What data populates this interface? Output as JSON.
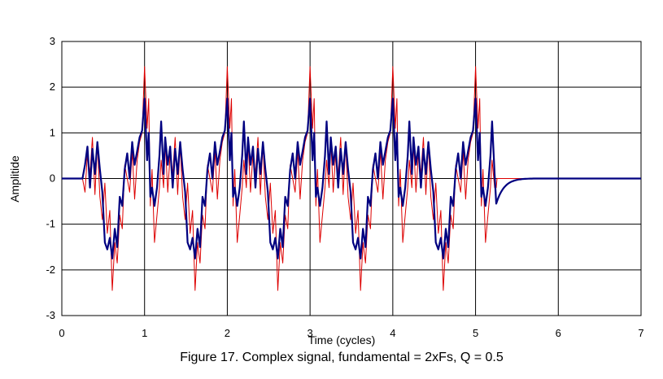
{
  "chart_data": {
    "type": "line",
    "title": "",
    "caption": "Figure 17. Complex signal, fundamental = 2xFs, Q = 0.5",
    "xlabel": "Time (cycles)",
    "ylabel": "Amplitide",
    "xlim": [
      0,
      7
    ],
    "ylim": [
      -3,
      3
    ],
    "x_ticks": [
      0,
      1,
      2,
      3,
      4,
      5,
      6,
      7
    ],
    "y_ticks": [
      -3,
      -2,
      -1,
      0,
      1,
      2,
      3
    ],
    "grid": true,
    "legend": "none",
    "series": [
      {
        "color": "#dd0000",
        "description": "input signal (thin)",
        "period": 1,
        "active_range": [
          0.25,
          5.25
        ],
        "cycle": {
          "x": [
            0.0,
            0.03,
            0.05,
            0.07,
            0.09,
            0.12,
            0.15,
            0.18,
            0.2,
            0.23,
            0.25,
            0.28,
            0.31,
            0.34,
            0.37,
            0.4,
            0.43,
            0.46,
            0.49,
            0.52,
            0.55,
            0.58,
            0.61,
            0.64,
            0.67,
            0.7,
            0.73,
            0.76,
            0.79,
            0.82,
            0.85,
            0.88,
            0.91,
            0.94,
            0.97
          ],
          "y": [
            2.45,
            1.1,
            1.75,
            -0.6,
            0.2,
            -1.4,
            -0.8,
            -0.2,
            0.4,
            -0.2,
            0.85,
            -0.3,
            0.55,
            0.1,
            0.9,
            -0.35,
            0.75,
            -0.4,
            -0.9,
            -0.1,
            -1.2,
            -0.7,
            -2.45,
            -1.4,
            -1.85,
            -0.8,
            -1.1,
            0.3,
            0.0,
            -0.3,
            0.6,
            -0.45,
            0.4,
            0.8,
            1.0
          ]
        }
      },
      {
        "color": "#000080",
        "description": "filtered output (bold)",
        "period": 1,
        "active_range": [
          0.25,
          5.25
        ],
        "decay_to": 5.72,
        "cycle": {
          "x": [
            0.0,
            0.03,
            0.05,
            0.07,
            0.09,
            0.12,
            0.15,
            0.18,
            0.2,
            0.23,
            0.25,
            0.28,
            0.31,
            0.34,
            0.37,
            0.4,
            0.43,
            0.46,
            0.49,
            0.52,
            0.55,
            0.58,
            0.61,
            0.64,
            0.67,
            0.7,
            0.73,
            0.76,
            0.79,
            0.82,
            0.85,
            0.88,
            0.91,
            0.94,
            0.97
          ],
          "y": [
            1.75,
            0.4,
            1.0,
            -0.4,
            -0.2,
            -0.6,
            -0.2,
            0.5,
            1.25,
            0.1,
            0.9,
            0.3,
            0.7,
            -0.2,
            0.65,
            0.1,
            0.8,
            0.2,
            -0.3,
            -1.4,
            -1.55,
            -1.3,
            -1.75,
            -1.1,
            -1.5,
            -0.4,
            -0.6,
            0.2,
            0.55,
            0.0,
            0.8,
            0.3,
            0.6,
            0.9,
            1.05
          ]
        }
      }
    ]
  }
}
